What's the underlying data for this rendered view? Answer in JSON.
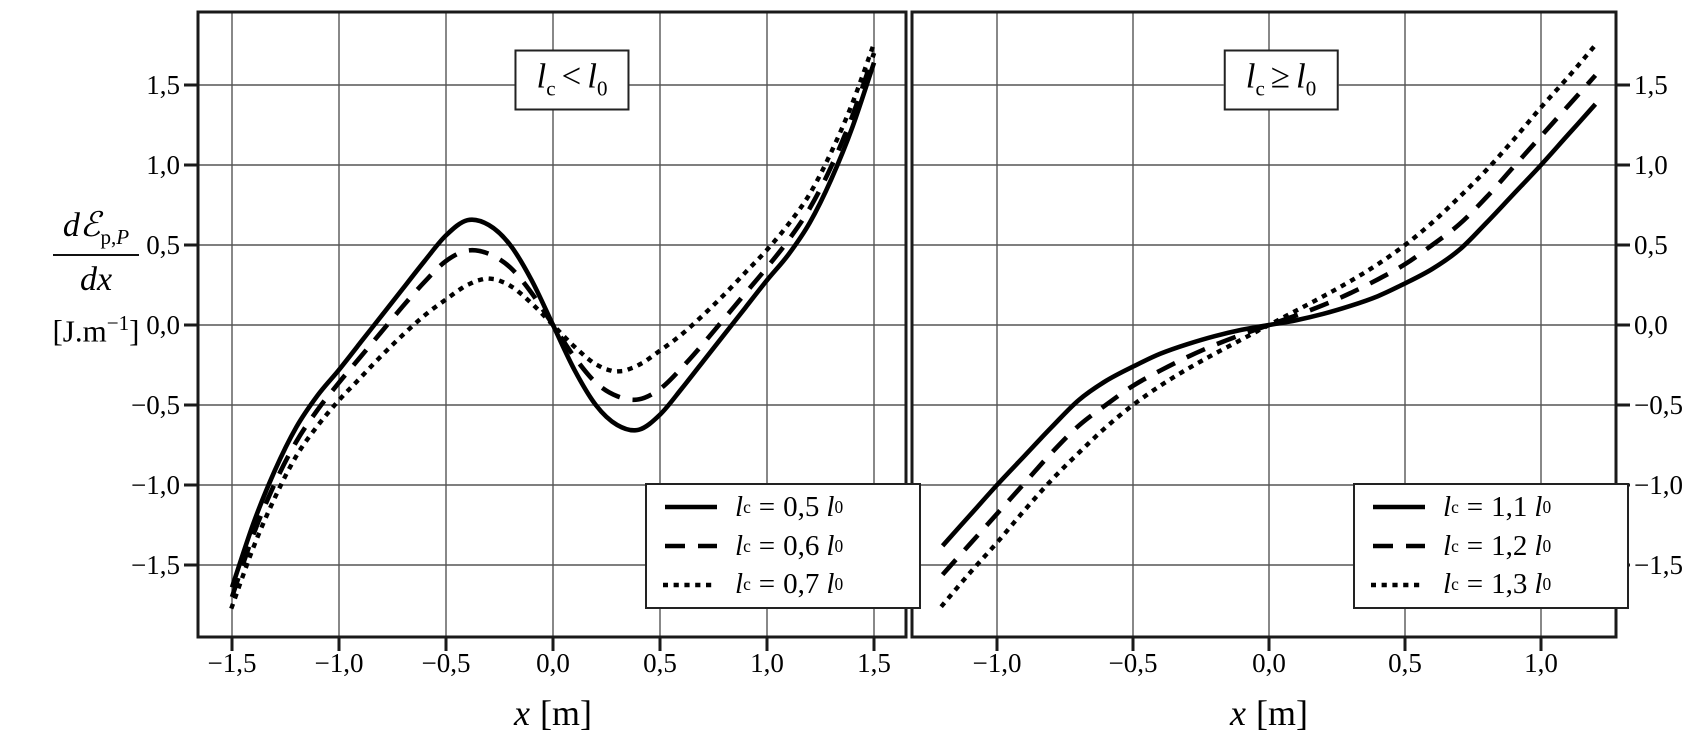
{
  "symbols": {
    "l": "l",
    "c": "c",
    "zero": "0",
    "eq": "=",
    "x_var": "x",
    "x_unit": "[m]"
  },
  "ylabel": {
    "num_d": "d",
    "num_E": "ℰ",
    "num_sub_p": "p,",
    "num_sub_P": "P",
    "den": "dx",
    "unit_pre": "[J.m",
    "unit_sup": "−1",
    "unit_post": "]"
  },
  "chart_data": [
    {
      "type": "line",
      "title": "lc < l0",
      "relation": "<",
      "xlabel": "x [m]",
      "ylabel": "dEp,P/dx [J.m-1]",
      "grid": true,
      "legend_position": "lower right",
      "x_axis": {
        "xlim": [
          -1.66,
          1.65
        ],
        "tick_values": [
          -1.5,
          -1.0,
          -0.5,
          0.0,
          0.5,
          1.0,
          1.5
        ],
        "tick_labels": [
          "−1,5",
          "−1,0",
          "−0,5",
          "0,0",
          "0,5",
          "1,0",
          "1,5"
        ]
      },
      "y_axis": {
        "ylim": [
          -1.95,
          1.95
        ],
        "side": "left",
        "tick_values": [
          1.5,
          1.0,
          0.5,
          0.0,
          -0.5,
          -1.0,
          -1.5
        ],
        "tick_labels": [
          "1,5",
          "1,0",
          "0,5",
          "0,0",
          "−0,5",
          "−1,0",
          "−1,5"
        ]
      },
      "series": [
        {
          "name": "lc = 0,5 l0",
          "label_value": "0,5",
          "line_style": "solid",
          "x": [
            -1.5,
            -1.4,
            -1.3,
            -1.2,
            -1.1,
            -1.0,
            -0.9,
            -0.8,
            -0.7,
            -0.6,
            -0.5,
            -0.4,
            -0.3,
            -0.2,
            -0.1,
            0,
            0.1,
            0.2,
            0.3,
            0.4,
            0.5,
            0.6,
            0.7,
            0.8,
            0.9,
            1.0,
            1.1,
            1.2,
            1.3,
            1.4,
            1.5
          ],
          "y": [
            -1.64,
            -1.24,
            -0.91,
            -0.64,
            -0.44,
            -0.28,
            -0.11,
            0.06,
            0.23,
            0.4,
            0.56,
            0.655,
            0.625,
            0.5,
            0.28,
            0,
            -0.28,
            -0.5,
            -0.625,
            -0.655,
            -0.56,
            -0.4,
            -0.23,
            -0.06,
            0.11,
            0.28,
            0.44,
            0.64,
            0.91,
            1.24,
            1.64
          ]
        },
        {
          "name": "lc = 0,6 l0",
          "label_value": "0,6",
          "line_style": "dashed",
          "x": [
            -1.5,
            -1.4,
            -1.3,
            -1.2,
            -1.1,
            -1.0,
            -0.9,
            -0.8,
            -0.7,
            -0.6,
            -0.5,
            -0.4,
            -0.3,
            -0.2,
            -0.1,
            0,
            0.1,
            0.2,
            0.3,
            0.4,
            0.5,
            0.6,
            0.7,
            0.8,
            0.9,
            1.0,
            1.1,
            1.2,
            1.3,
            1.4,
            1.5
          ],
          "y": [
            -1.7,
            -1.31,
            -0.99,
            -0.73,
            -0.53,
            -0.36,
            -0.2,
            -0.04,
            0.12,
            0.27,
            0.4,
            0.465,
            0.445,
            0.36,
            0.2,
            0,
            -0.2,
            -0.36,
            -0.445,
            -0.465,
            -0.4,
            -0.27,
            -0.12,
            0.04,
            0.2,
            0.36,
            0.53,
            0.73,
            0.99,
            1.31,
            1.7
          ]
        },
        {
          "name": "lc = 0,7 l0",
          "label_value": "0,7",
          "line_style": "dotted",
          "x": [
            -1.5,
            -1.4,
            -1.3,
            -1.2,
            -1.1,
            -1.0,
            -0.9,
            -0.8,
            -0.7,
            -0.6,
            -0.5,
            -0.4,
            -0.3,
            -0.2,
            -0.1,
            0,
            0.1,
            0.2,
            0.3,
            0.4,
            0.5,
            0.6,
            0.7,
            0.8,
            0.9,
            1.0,
            1.1,
            1.2,
            1.3,
            1.4,
            1.5
          ],
          "y": [
            -1.76,
            -1.39,
            -1.08,
            -0.82,
            -0.63,
            -0.47,
            -0.33,
            -0.19,
            -0.06,
            0.06,
            0.16,
            0.25,
            0.29,
            0.245,
            0.135,
            0,
            -0.135,
            -0.245,
            -0.29,
            -0.25,
            -0.16,
            -0.06,
            0.06,
            0.19,
            0.33,
            0.47,
            0.63,
            0.82,
            1.08,
            1.39,
            1.76
          ]
        }
      ]
    },
    {
      "type": "line",
      "title": "lc ≥ l0",
      "relation": "≥",
      "xlabel": "x [m]",
      "ylabel": "dEp,P/dx [J.m-1]",
      "grid": true,
      "legend_position": "lower right",
      "x_axis": {
        "xlim": [
          -1.31,
          1.28
        ],
        "tick_values": [
          -1.0,
          -0.5,
          0.0,
          0.5,
          1.0
        ],
        "tick_labels": [
          "−1,0",
          "−0,5",
          "0,0",
          "0,5",
          "1,0"
        ]
      },
      "y_axis": {
        "ylim": [
          -1.95,
          1.95
        ],
        "side": "right",
        "tick_values": [
          1.5,
          1.0,
          0.5,
          0.0,
          -0.5,
          -1.0,
          -1.5
        ],
        "tick_labels": [
          "1,5",
          "1,0",
          "0,5",
          "0,0",
          "−0,5",
          "−1,0",
          "−1,5"
        ]
      },
      "series": [
        {
          "name": "lc = 1,1 l0",
          "label_value": "1,1",
          "line_style": "solid",
          "x": [
            -1.2,
            -1.1,
            -1.0,
            -0.9,
            -0.8,
            -0.7,
            -0.6,
            -0.5,
            -0.4,
            -0.3,
            -0.2,
            -0.1,
            0,
            0.1,
            0.2,
            0.3,
            0.4,
            0.5,
            0.6,
            0.7,
            0.8,
            0.9,
            1.0,
            1.1,
            1.2
          ],
          "y": [
            -1.38,
            -1.19,
            -1.0,
            -0.82,
            -0.64,
            -0.47,
            -0.35,
            -0.26,
            -0.18,
            -0.12,
            -0.07,
            -0.03,
            0,
            0.03,
            0.07,
            0.12,
            0.18,
            0.26,
            0.35,
            0.47,
            0.64,
            0.82,
            1.0,
            1.19,
            1.38
          ]
        },
        {
          "name": "lc = 1,2 l0",
          "label_value": "1,2",
          "line_style": "dashed",
          "x": [
            -1.2,
            -1.1,
            -1.0,
            -0.9,
            -0.8,
            -0.7,
            -0.6,
            -0.5,
            -0.4,
            -0.3,
            -0.2,
            -0.1,
            0,
            0.1,
            0.2,
            0.3,
            0.4,
            0.5,
            0.6,
            0.7,
            0.8,
            0.9,
            1.0,
            1.1,
            1.2
          ],
          "y": [
            -1.56,
            -1.37,
            -1.18,
            -0.99,
            -0.8,
            -0.63,
            -0.5,
            -0.38,
            -0.285,
            -0.2,
            -0.125,
            -0.06,
            0,
            0.06,
            0.125,
            0.2,
            0.285,
            0.38,
            0.5,
            0.63,
            0.8,
            0.99,
            1.18,
            1.37,
            1.56
          ]
        },
        {
          "name": "lc = 1,3 l0",
          "label_value": "1,3",
          "line_style": "dotted",
          "x": [
            -1.2,
            -1.1,
            -1.0,
            -0.9,
            -0.8,
            -0.7,
            -0.6,
            -0.5,
            -0.4,
            -0.3,
            -0.2,
            -0.1,
            0,
            0.1,
            0.2,
            0.3,
            0.4,
            0.5,
            0.6,
            0.7,
            0.8,
            0.9,
            1.0,
            1.1,
            1.2
          ],
          "y": [
            -1.75,
            -1.55,
            -1.36,
            -1.16,
            -0.97,
            -0.8,
            -0.64,
            -0.5,
            -0.38,
            -0.275,
            -0.18,
            -0.09,
            0,
            0.09,
            0.18,
            0.275,
            0.38,
            0.5,
            0.64,
            0.8,
            0.97,
            1.16,
            1.36,
            1.55,
            1.75
          ]
        }
      ]
    }
  ]
}
